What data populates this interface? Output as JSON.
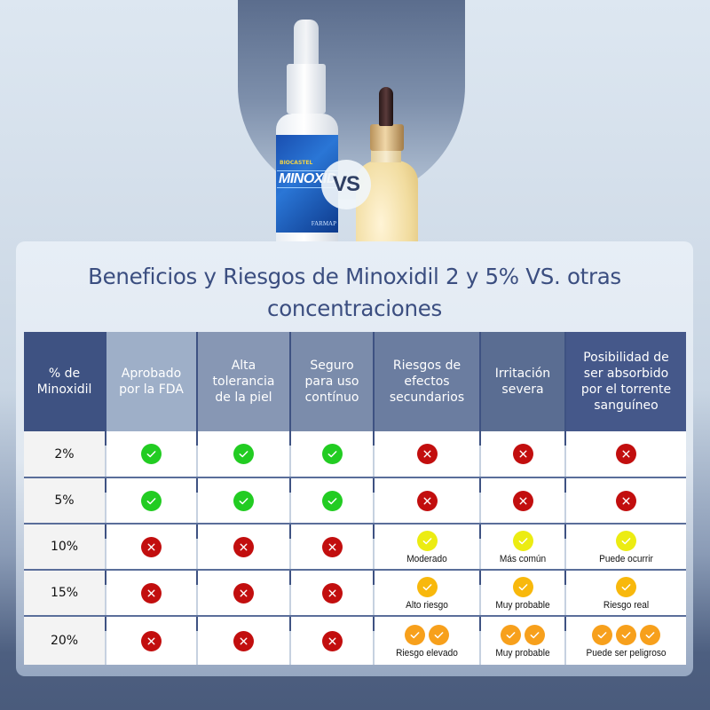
{
  "hero": {
    "vs_label": "VS",
    "product_left": {
      "type": "spray bottle",
      "brand_text": "BIOCASTEL",
      "name_text": "MINOXIDIL",
      "maker_text": "FARMAP"
    },
    "product_right": {
      "type": "dropper bottle"
    }
  },
  "card": {
    "title_line1": "Beneficios y Riesgos de Minoxidil 2 y 5% VS. otras",
    "title_line2": "concentraciones"
  },
  "colors": {
    "title": "#3b4e80",
    "header_dark": "#3e5282",
    "check_green": "#22cc22",
    "cross_red": "#c20e0e",
    "check_yellow": "#ecec12",
    "check_amber": "#f8b80c",
    "check_orange": "#f7a01c"
  },
  "table": {
    "headers": [
      {
        "line1": "% de",
        "line2": "Minoxidil",
        "line3": "",
        "line4": "",
        "bg": "#3e5282"
      },
      {
        "line1": "Aprobado",
        "line2": "por la FDA",
        "line3": "",
        "line4": "",
        "bg": "#9eafc8"
      },
      {
        "line1": "Alta",
        "line2": "tolerancia",
        "line3": "de la piel",
        "line4": "",
        "bg": "#8797b4"
      },
      {
        "line1": "Seguro",
        "line2": "para uso",
        "line3": "contínuo",
        "line4": "",
        "bg": "#7b8cab"
      },
      {
        "line1": "Riesgos de",
        "line2": "efectos",
        "line3": "secundarios",
        "line4": "",
        "bg": "#6b7da0"
      },
      {
        "line1": "Irritación",
        "line2": "severa",
        "line3": "",
        "line4": "",
        "bg": "#5a6d92"
      },
      {
        "line1": "Posibilidad de",
        "line2": "ser absorbido",
        "line3": "por el torrente",
        "line4": "sanguíneo",
        "bg": "#45588a"
      }
    ],
    "rows": [
      {
        "concentration": "2%",
        "cells": [
          {
            "icons": [
              "check-green"
            ],
            "note": ""
          },
          {
            "icons": [
              "check-green"
            ],
            "note": ""
          },
          {
            "icons": [
              "check-green"
            ],
            "note": ""
          },
          {
            "icons": [
              "cross-red"
            ],
            "note": ""
          },
          {
            "icons": [
              "cross-red"
            ],
            "note": ""
          },
          {
            "icons": [
              "cross-red"
            ],
            "note": ""
          }
        ]
      },
      {
        "concentration": "5%",
        "cells": [
          {
            "icons": [
              "check-green"
            ],
            "note": ""
          },
          {
            "icons": [
              "check-green"
            ],
            "note": ""
          },
          {
            "icons": [
              "check-green"
            ],
            "note": ""
          },
          {
            "icons": [
              "cross-red"
            ],
            "note": ""
          },
          {
            "icons": [
              "cross-red"
            ],
            "note": ""
          },
          {
            "icons": [
              "cross-red"
            ],
            "note": ""
          }
        ]
      },
      {
        "concentration": "10%",
        "cells": [
          {
            "icons": [
              "cross-red"
            ],
            "note": ""
          },
          {
            "icons": [
              "cross-red"
            ],
            "note": ""
          },
          {
            "icons": [
              "cross-red"
            ],
            "note": ""
          },
          {
            "icons": [
              "check-yellow"
            ],
            "note": "Moderado"
          },
          {
            "icons": [
              "check-yellow"
            ],
            "note": "Más común"
          },
          {
            "icons": [
              "check-yellow"
            ],
            "note": "Puede ocurrir"
          }
        ]
      },
      {
        "concentration": "15%",
        "cells": [
          {
            "icons": [
              "cross-red"
            ],
            "note": ""
          },
          {
            "icons": [
              "cross-red"
            ],
            "note": ""
          },
          {
            "icons": [
              "cross-red"
            ],
            "note": ""
          },
          {
            "icons": [
              "check-amber"
            ],
            "note": "Alto riesgo"
          },
          {
            "icons": [
              "check-amber"
            ],
            "note": "Muy probable"
          },
          {
            "icons": [
              "check-amber"
            ],
            "note": "Riesgo real"
          }
        ]
      },
      {
        "concentration": "20%",
        "cells": [
          {
            "icons": [
              "cross-red"
            ],
            "note": ""
          },
          {
            "icons": [
              "cross-red"
            ],
            "note": ""
          },
          {
            "icons": [
              "cross-red"
            ],
            "note": ""
          },
          {
            "icons": [
              "check-orange",
              "check-orange"
            ],
            "note": "Riesgo elevado"
          },
          {
            "icons": [
              "check-orange",
              "check-orange"
            ],
            "note": "Muy probable"
          },
          {
            "icons": [
              "check-orange",
              "check-orange",
              "check-orange"
            ],
            "note": "Puede ser peligroso"
          }
        ]
      }
    ]
  }
}
